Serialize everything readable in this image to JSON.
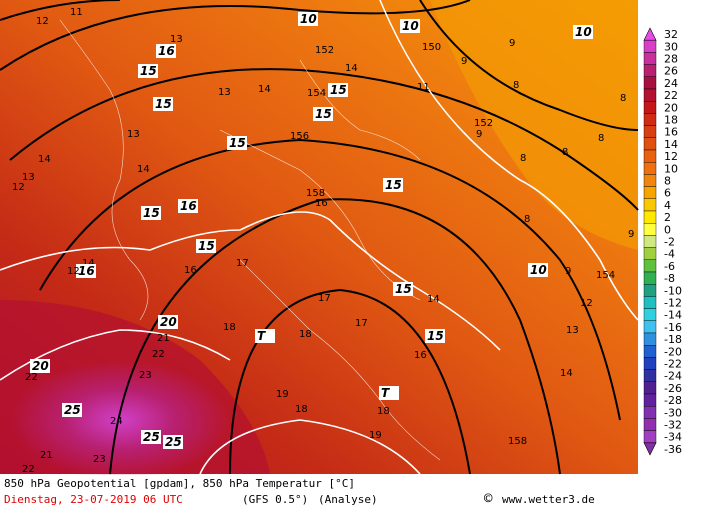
{
  "colorbar": {
    "ticks": [
      32,
      30,
      28,
      26,
      24,
      22,
      20,
      18,
      16,
      14,
      12,
      10,
      8,
      6,
      4,
      2,
      0,
      -2,
      -4,
      -6,
      -8,
      -10,
      -12,
      -14,
      -16,
      -18,
      -20,
      -22,
      -24,
      -26,
      -28,
      -30,
      -32,
      -34,
      -36
    ],
    "colors": [
      "#e84ce8",
      "#d83ec8",
      "#c8309c",
      "#b82070",
      "#a81040",
      "#b41030",
      "#c41818",
      "#d02c14",
      "#d84014",
      "#e05010",
      "#e86010",
      "#ee7010",
      "#f28410",
      "#f6a400",
      "#fac800",
      "#ffe800",
      "#ffff40",
      "#d0e880",
      "#a0d040",
      "#60c040",
      "#30b050",
      "#20a080",
      "#20c0c0",
      "#30d0e0",
      "#40c0f0",
      "#3090e0",
      "#2060d0",
      "#2040c0",
      "#3030a0",
      "#502090",
      "#6020a0",
      "#8030b0",
      "#9030b0",
      "#a040c0",
      "#8030a0"
    ]
  },
  "footer": {
    "line1": "850 hPa Geopotential [gpdam], 850 hPa Temperatur [°C]",
    "date": "Dienstag, 23-07-2019  06 UTC",
    "model": "(GFS 0.5°)",
    "run": "(Analyse)",
    "copyright": "©",
    "site": "www.wetter3.de"
  },
  "map_labels": [
    "11",
    "12",
    "13",
    "16",
    "10",
    "15",
    "10",
    "150",
    "152",
    "14",
    "10",
    "9",
    "9",
    "8",
    "8",
    "13",
    "14",
    "154",
    "15",
    "11",
    "152",
    "9",
    "8",
    "8",
    "13",
    "15",
    "15",
    "156",
    "14",
    "8",
    "8",
    "14",
    "12",
    "13",
    "15",
    "15",
    "158",
    "16",
    "16",
    "15",
    "15",
    "9",
    "10",
    "154",
    "9",
    "14",
    "17",
    "16",
    "14",
    "15",
    "12",
    "16",
    "12",
    "17",
    "15",
    "13",
    "18",
    "T",
    "18",
    "20",
    "21",
    "22",
    "16",
    "17",
    "23",
    "14",
    "25",
    "24",
    "25",
    "25",
    "19",
    "18",
    "T",
    "18",
    "19",
    "158",
    "22",
    "23",
    "21",
    "20",
    "22"
  ]
}
